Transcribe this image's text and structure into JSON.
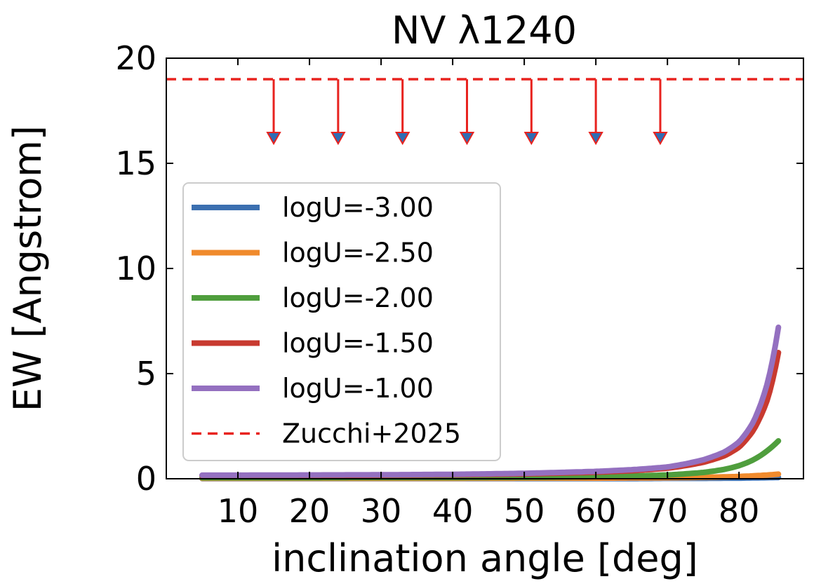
{
  "chart_data": {
    "type": "line",
    "title": "NV λ1240",
    "xlabel": "inclination angle [deg]",
    "ylabel": "EW [Angstrom]",
    "xlim": [
      0,
      89
    ],
    "ylim": [
      0,
      20
    ],
    "xticks": [
      10,
      20,
      30,
      40,
      50,
      60,
      70,
      80
    ],
    "yticks": [
      0,
      5,
      10,
      15,
      20
    ],
    "grid": false,
    "legend_position": "center-left",
    "x": [
      5,
      10,
      20,
      30,
      40,
      50,
      60,
      65,
      70,
      75,
      78,
      80,
      82,
      84,
      85.5
    ],
    "series": [
      {
        "name": "logU=-3.00",
        "color": "#3b6fb0",
        "values": [
          0.01,
          0.01,
          0.01,
          0.01,
          0.01,
          0.01,
          0.01,
          0.01,
          0.02,
          0.02,
          0.03,
          0.03,
          0.04,
          0.05,
          0.06
        ]
      },
      {
        "name": "logU=-2.50",
        "color": "#f08a2c",
        "values": [
          0.02,
          0.02,
          0.02,
          0.02,
          0.02,
          0.03,
          0.03,
          0.04,
          0.05,
          0.07,
          0.09,
          0.11,
          0.14,
          0.18,
          0.22
        ]
      },
      {
        "name": "logU=-2.00",
        "color": "#4f9e3d",
        "values": [
          0.05,
          0.05,
          0.05,
          0.06,
          0.06,
          0.07,
          0.1,
          0.13,
          0.18,
          0.3,
          0.45,
          0.62,
          0.9,
          1.35,
          1.8
        ]
      },
      {
        "name": "logU=-1.50",
        "color": "#c83a30",
        "values": [
          0.15,
          0.15,
          0.16,
          0.17,
          0.19,
          0.23,
          0.31,
          0.38,
          0.5,
          0.78,
          1.1,
          1.5,
          2.3,
          3.8,
          6.0
        ]
      },
      {
        "name": "logU=-1.00",
        "color": "#9470c0",
        "values": [
          0.17,
          0.17,
          0.18,
          0.19,
          0.21,
          0.26,
          0.35,
          0.43,
          0.56,
          0.9,
          1.28,
          1.75,
          2.7,
          4.6,
          7.2
        ]
      }
    ],
    "limit_series": {
      "name": "Zucchi+2025",
      "color": "#e8231f",
      "linestyle": "dashed",
      "y": 19,
      "upper_limit_x": [
        15,
        24,
        33,
        42,
        51,
        60,
        69
      ],
      "upper_limit_y": 19,
      "arrow_to_y": 16,
      "marker_color": "#2e6db4"
    }
  }
}
